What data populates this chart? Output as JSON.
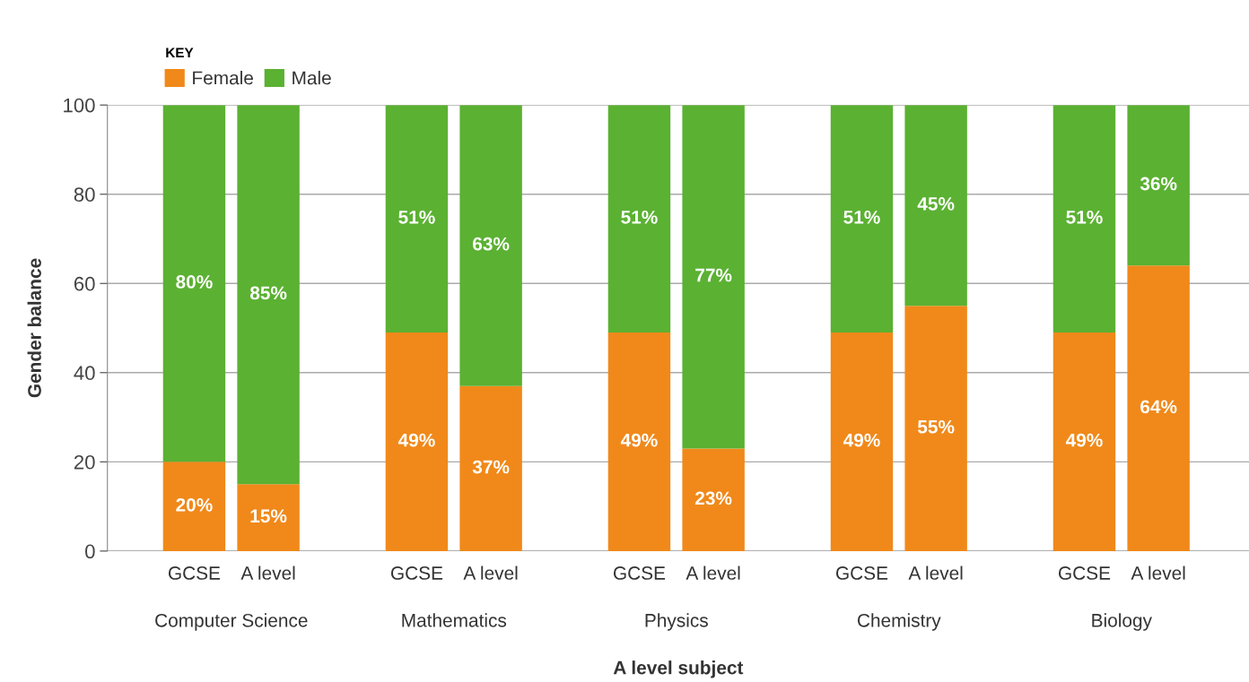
{
  "chart_data": {
    "type": "bar",
    "stacked": true,
    "xlabel": "A level subject",
    "ylabel": "Gender balance",
    "legend_title": "KEY",
    "legend": "top left",
    "categories": [
      "GCSE",
      "A level",
      null,
      "GCSE",
      "A level",
      null,
      "GCSE",
      "A level",
      null,
      "GCSE",
      "A level",
      null,
      "GCSE",
      "A level"
    ],
    "annotations": [
      "Computer Science",
      "Mathematics",
      "Physics",
      "Chemistry",
      "Biology"
    ],
    "series": [
      {
        "name": "Female",
        "color": "#f0891a",
        "values": [
          20,
          15,
          null,
          49,
          37,
          null,
          49,
          23,
          null,
          49,
          55,
          null,
          49,
          64
        ],
        "value_labels": [
          "20%",
          "15%",
          null,
          "49%",
          "37%",
          null,
          "49%",
          "23%",
          null,
          "49%",
          "55%",
          null,
          "49%",
          "64%"
        ]
      },
      {
        "name": "Male",
        "color": "#5bb132",
        "values": [
          80,
          85,
          null,
          51,
          63,
          null,
          51,
          77,
          null,
          51,
          45,
          null,
          51,
          36
        ],
        "value_labels": [
          "80%",
          "85%",
          null,
          "51%",
          "63%",
          null,
          "51%",
          "77%",
          null,
          "51%",
          "45%",
          null,
          "51%",
          "36%"
        ]
      }
    ],
    "ylim": [
      0,
      100
    ],
    "yticks": [
      0,
      20,
      40,
      60,
      80,
      100
    ],
    "grid": "y"
  }
}
